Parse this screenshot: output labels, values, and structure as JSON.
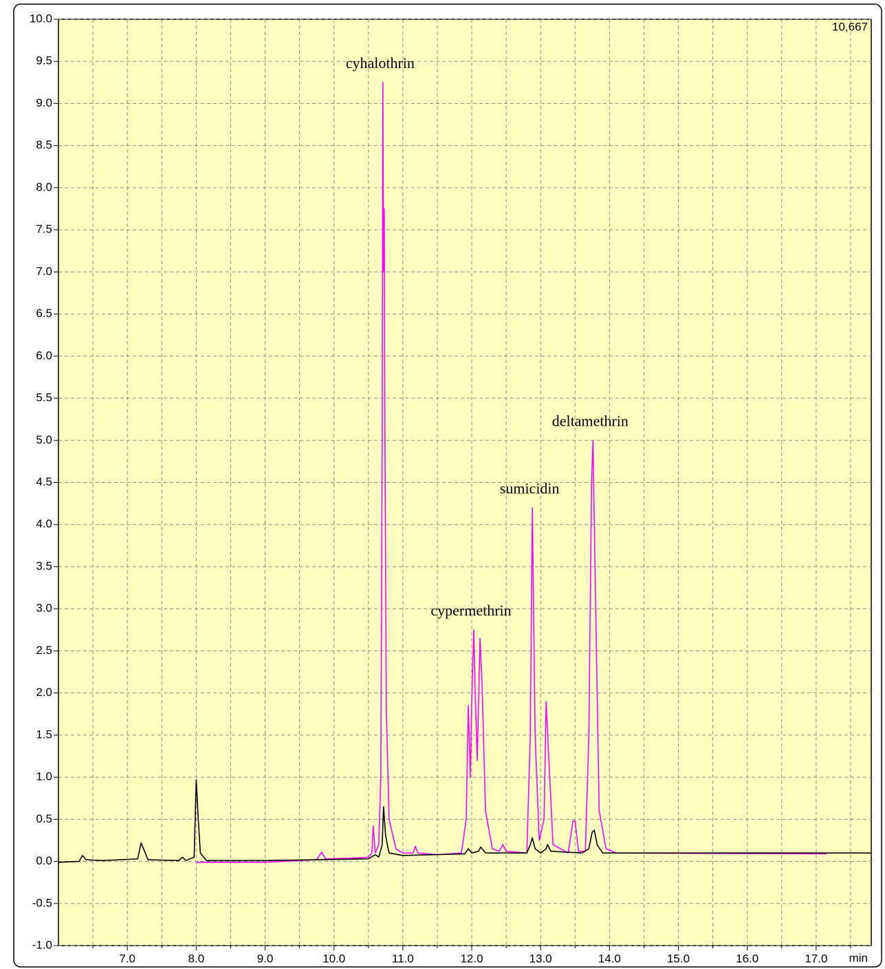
{
  "chart_data": {
    "type": "line",
    "corner_label": "10,667",
    "x_label": "min",
    "xlim": [
      6.0,
      17.8
    ],
    "ylim": [
      -1.0,
      10.0
    ],
    "xticks": [
      {
        "value": 7,
        "label": "7.0"
      },
      {
        "value": 8,
        "label": "8.0"
      },
      {
        "value": 9,
        "label": "9.0"
      },
      {
        "value": 10,
        "label": "10.0"
      },
      {
        "value": 11,
        "label": "11.0"
      },
      {
        "value": 12,
        "label": "12.0"
      },
      {
        "value": 13,
        "label": "13.0"
      },
      {
        "value": 14,
        "label": "14.0"
      },
      {
        "value": 15,
        "label": "15.0"
      },
      {
        "value": 16,
        "label": "16.0"
      },
      {
        "value": 17,
        "label": "17.0"
      }
    ],
    "xminorticks": [
      6.5,
      7.5,
      8.5,
      9.5,
      10.5,
      11.5,
      12.5,
      13.5,
      14.5,
      15.5,
      16.5,
      17.5
    ],
    "yticks": [
      {
        "value": -1,
        "label": "-1.0"
      },
      -0.5,
      {
        "value": 0,
        "label": "0.0"
      },
      0.5,
      {
        "value": 1,
        "label": "1.0"
      },
      1.5,
      {
        "value": 2,
        "label": "2.0"
      },
      2.5,
      {
        "value": 3,
        "label": "3.0"
      },
      3.5,
      {
        "value": 4,
        "label": "4.0"
      },
      4.5,
      {
        "value": 5,
        "label": "5.0"
      },
      5.5,
      {
        "value": 6,
        "label": "6.0"
      },
      6.5,
      {
        "value": 7,
        "label": "7.0"
      },
      7.5,
      {
        "value": 8,
        "label": "8.0"
      },
      8.5,
      {
        "value": 9,
        "label": "9.0"
      },
      9.5,
      {
        "value": 10,
        "label": "10.0"
      }
    ],
    "grid": true,
    "background": "#ffffc0",
    "series": [
      {
        "color": "#ff00ff",
        "x": [
          8.0,
          8.3,
          9.0,
          9.75,
          9.82,
          9.88,
          10.3,
          10.5,
          10.55,
          10.57,
          10.6,
          10.65,
          10.68,
          10.7,
          10.71,
          10.72,
          10.73,
          10.74,
          10.76,
          10.8,
          10.9,
          11.0,
          11.15,
          11.18,
          11.22,
          11.5,
          11.85,
          11.92,
          11.95,
          11.98,
          12.0,
          12.03,
          12.05,
          12.08,
          12.12,
          12.15,
          12.2,
          12.3,
          12.4,
          12.45,
          12.5,
          12.8,
          12.85,
          12.88,
          12.92,
          12.98,
          13.05,
          13.08,
          13.12,
          13.18,
          13.4,
          13.47,
          13.5,
          13.55,
          13.65,
          13.7,
          13.74,
          13.76,
          13.8,
          13.85,
          13.95,
          14.1,
          17.15
        ],
        "values": [
          -0.01,
          -0.01,
          -0.01,
          0.02,
          0.11,
          0.03,
          0.04,
          0.05,
          0.1,
          0.42,
          0.1,
          0.2,
          1.0,
          5.0,
          9.25,
          7.0,
          7.75,
          5.0,
          1.8,
          0.5,
          0.15,
          0.1,
          0.1,
          0.18,
          0.1,
          0.08,
          0.1,
          0.5,
          1.85,
          1.0,
          1.9,
          2.75,
          2.0,
          1.2,
          2.65,
          2.1,
          0.6,
          0.15,
          0.12,
          0.2,
          0.12,
          0.1,
          1.5,
          4.2,
          1.5,
          0.25,
          0.5,
          1.9,
          1.2,
          0.2,
          0.1,
          0.48,
          0.48,
          0.12,
          0.12,
          1.5,
          4.5,
          5.0,
          3.0,
          0.6,
          0.15,
          0.1,
          0.09
        ]
      },
      {
        "color": "#000000",
        "x": [
          6.0,
          6.3,
          6.35,
          6.4,
          6.65,
          7.15,
          7.2,
          7.25,
          7.3,
          7.75,
          7.8,
          7.85,
          7.97,
          8.0,
          8.03,
          8.06,
          8.15,
          9.0,
          9.8,
          10.5,
          10.6,
          10.65,
          10.7,
          10.72,
          10.75,
          10.8,
          11.0,
          11.9,
          11.95,
          12.0,
          12.1,
          12.13,
          12.2,
          12.8,
          12.85,
          12.88,
          12.92,
          13.0,
          13.08,
          13.1,
          13.15,
          13.6,
          13.7,
          13.75,
          13.78,
          13.82,
          13.9,
          17.8
        ],
        "values": [
          -0.01,
          0.0,
          0.07,
          0.02,
          0.01,
          0.03,
          0.22,
          0.12,
          0.02,
          0.01,
          0.05,
          0.01,
          0.05,
          0.97,
          0.5,
          0.1,
          0.01,
          0.01,
          0.02,
          0.03,
          0.08,
          0.05,
          0.2,
          0.65,
          0.3,
          0.1,
          0.07,
          0.09,
          0.15,
          0.1,
          0.12,
          0.17,
          0.1,
          0.1,
          0.2,
          0.28,
          0.15,
          0.1,
          0.15,
          0.2,
          0.12,
          0.1,
          0.15,
          0.35,
          0.37,
          0.2,
          0.1,
          0.1
        ]
      }
    ],
    "annotations": [
      {
        "text": "cyhalothrin",
        "x": 10.71,
        "y": 9.25
      },
      {
        "text": "cypermethrin",
        "x": 12.03,
        "y": 2.75
      },
      {
        "text": "sumicidin",
        "x": 12.88,
        "y": 4.2
      },
      {
        "text": "deltamethrin",
        "x": 13.76,
        "y": 5.0
      }
    ]
  }
}
